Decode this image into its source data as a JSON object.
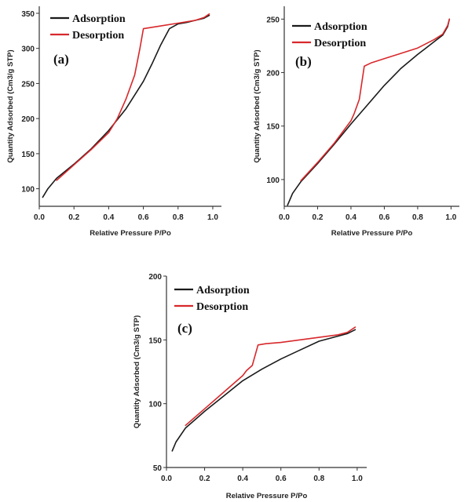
{
  "chart_data": [
    {
      "type": "line",
      "panel_label": "(a)",
      "xlabel": "Relative Pressure P/Po",
      "ylabel": "Quantity Adsorbed (Cm3/g STP)",
      "xlim": [
        0.0,
        1.05
      ],
      "ylim": [
        75,
        360
      ],
      "xticks": [
        "0.0",
        "0.2",
        "0.4",
        "0.6",
        "0.8",
        "1.0"
      ],
      "yticks": [
        "100",
        "150",
        "200",
        "250",
        "300",
        "350"
      ],
      "legend": "top-left",
      "grid": false,
      "series": [
        {
          "name": "Adsorption",
          "color": "#1a1a1a",
          "x": [
            0.02,
            0.05,
            0.1,
            0.2,
            0.3,
            0.4,
            0.5,
            0.6,
            0.65,
            0.7,
            0.75,
            0.8,
            0.85,
            0.9,
            0.95,
            0.98
          ],
          "y": [
            88,
            100,
            115,
            135,
            157,
            183,
            214,
            253,
            278,
            305,
            328,
            335,
            337,
            340,
            343,
            347
          ]
        },
        {
          "name": "Desorption",
          "color": "#d8282b",
          "x": [
            0.98,
            0.95,
            0.9,
            0.8,
            0.7,
            0.65,
            0.6,
            0.58,
            0.55,
            0.5,
            0.45,
            0.4,
            0.3,
            0.2,
            0.1
          ],
          "y": [
            349,
            344,
            340,
            336,
            332,
            330,
            328,
            300,
            262,
            228,
            200,
            180,
            156,
            134,
            112
          ]
        }
      ]
    },
    {
      "type": "line",
      "panel_label": "(b)",
      "xlabel": "Relative Pressure P/Po",
      "ylabel": "Quantity Adsorbed (Cm3/g STP)",
      "xlim": [
        0.0,
        1.05
      ],
      "ylim": [
        75,
        262
      ],
      "xticks": [
        "0.0",
        "0.2",
        "0.4",
        "0.6",
        "0.8",
        "1.0"
      ],
      "yticks": [
        "100",
        "150",
        "200",
        "250"
      ],
      "legend": "top-left",
      "grid": false,
      "series": [
        {
          "name": "Adsorption",
          "color": "#1a1a1a",
          "x": [
            0.02,
            0.05,
            0.1,
            0.2,
            0.3,
            0.4,
            0.5,
            0.6,
            0.7,
            0.8,
            0.85,
            0.9,
            0.95,
            0.98,
            0.99
          ],
          "y": [
            76,
            87,
            98,
            115,
            133,
            152,
            170,
            188,
            204,
            217,
            223,
            229,
            235,
            243,
            250
          ]
        },
        {
          "name": "Desorption",
          "color": "#d8282b",
          "x": [
            0.99,
            0.98,
            0.95,
            0.9,
            0.8,
            0.7,
            0.6,
            0.52,
            0.48,
            0.45,
            0.42,
            0.4,
            0.3,
            0.2,
            0.1
          ],
          "y": [
            250,
            244,
            236,
            231,
            223,
            218,
            213,
            209,
            206,
            175,
            162,
            155,
            134,
            116,
            99
          ]
        }
      ]
    },
    {
      "type": "line",
      "panel_label": "(c)",
      "xlabel": "Relative Pressure P/Po",
      "ylabel": "Quantity Adsorbed (Cm3/g STP)",
      "xlim": [
        0.0,
        1.05
      ],
      "ylim": [
        50,
        200
      ],
      "xticks": [
        "0.0",
        "0.2",
        "0.4",
        "0.6",
        "0.8",
        "1.0"
      ],
      "yticks": [
        "50",
        "100",
        "150",
        "200"
      ],
      "legend": "top-left",
      "grid": false,
      "series": [
        {
          "name": "Adsorption",
          "color": "#1a1a1a",
          "x": [
            0.03,
            0.05,
            0.1,
            0.2,
            0.3,
            0.4,
            0.5,
            0.6,
            0.7,
            0.8,
            0.9,
            0.95,
            0.99
          ],
          "y": [
            63,
            70,
            81,
            94,
            106,
            118,
            127,
            135,
            142,
            149,
            153,
            155,
            158
          ]
        },
        {
          "name": "Desorption",
          "color": "#d8282b",
          "x": [
            0.99,
            0.95,
            0.9,
            0.8,
            0.7,
            0.6,
            0.52,
            0.48,
            0.45,
            0.42,
            0.4,
            0.3,
            0.2,
            0.1
          ],
          "y": [
            160,
            156,
            154,
            152,
            150,
            148,
            147,
            146,
            130,
            126,
            122,
            109,
            96,
            83
          ]
        }
      ]
    }
  ]
}
